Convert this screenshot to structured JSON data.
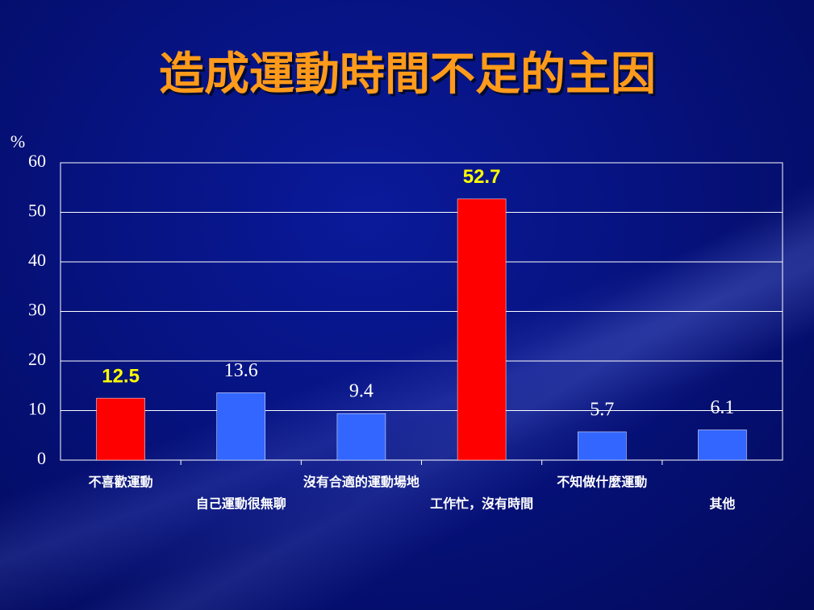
{
  "chart_data": {
    "type": "bar",
    "title": "造成運動時間不足的主因",
    "y_label": "%",
    "categories": [
      "不喜歡運動",
      "自己運動很無聊",
      "沒有合適的運動場地",
      "工作忙，沒有時間",
      "不知做什麼運動",
      "其他"
    ],
    "values": [
      12.5,
      13.6,
      9.4,
      52.7,
      5.7,
      6.1
    ],
    "colors": [
      "#ff0000",
      "#3366ff",
      "#3366ff",
      "#ff0000",
      "#3366ff",
      "#3366ff"
    ],
    "label_colors": [
      "#ffff00",
      "#ffffff",
      "#ffffff",
      "#ffff00",
      "#ffffff",
      "#ffffff"
    ],
    "ylim": [
      0,
      60
    ],
    "yticks": [
      0,
      10,
      20,
      30,
      40,
      50,
      60
    ],
    "grid": true
  }
}
